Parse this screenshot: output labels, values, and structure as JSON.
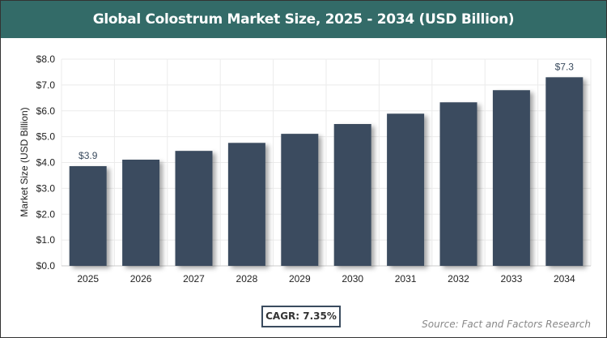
{
  "title": "Global Colostrum Market Size, 2025 - 2034 (USD Billion)",
  "cagr_label": "CAGR: 7.35%",
  "source": "Source: Fact and Factors Research",
  "colors": {
    "title_bar": "#336b68",
    "bar": "#3a4b5e"
  },
  "chart_data": {
    "type": "bar",
    "title": "Global Colostrum Market Size, 2025 - 2034 (USD Billion)",
    "xlabel": "",
    "ylabel": "Market Size (USD Billion)",
    "ylim": [
      0,
      8
    ],
    "yticks": [
      "$0.0",
      "$1.0",
      "$2.0",
      "$3.0",
      "$4.0",
      "$5.0",
      "$6.0",
      "$7.0",
      "$8.0"
    ],
    "grid": true,
    "categories": [
      "2025",
      "2026",
      "2027",
      "2028",
      "2029",
      "2030",
      "2031",
      "2032",
      "2033",
      "2034"
    ],
    "values": [
      3.86,
      4.11,
      4.45,
      4.76,
      5.11,
      5.49,
      5.89,
      6.33,
      6.8,
      7.3
    ],
    "data_labels": {
      "2025": "$3.9",
      "2034": "$7.3"
    }
  }
}
